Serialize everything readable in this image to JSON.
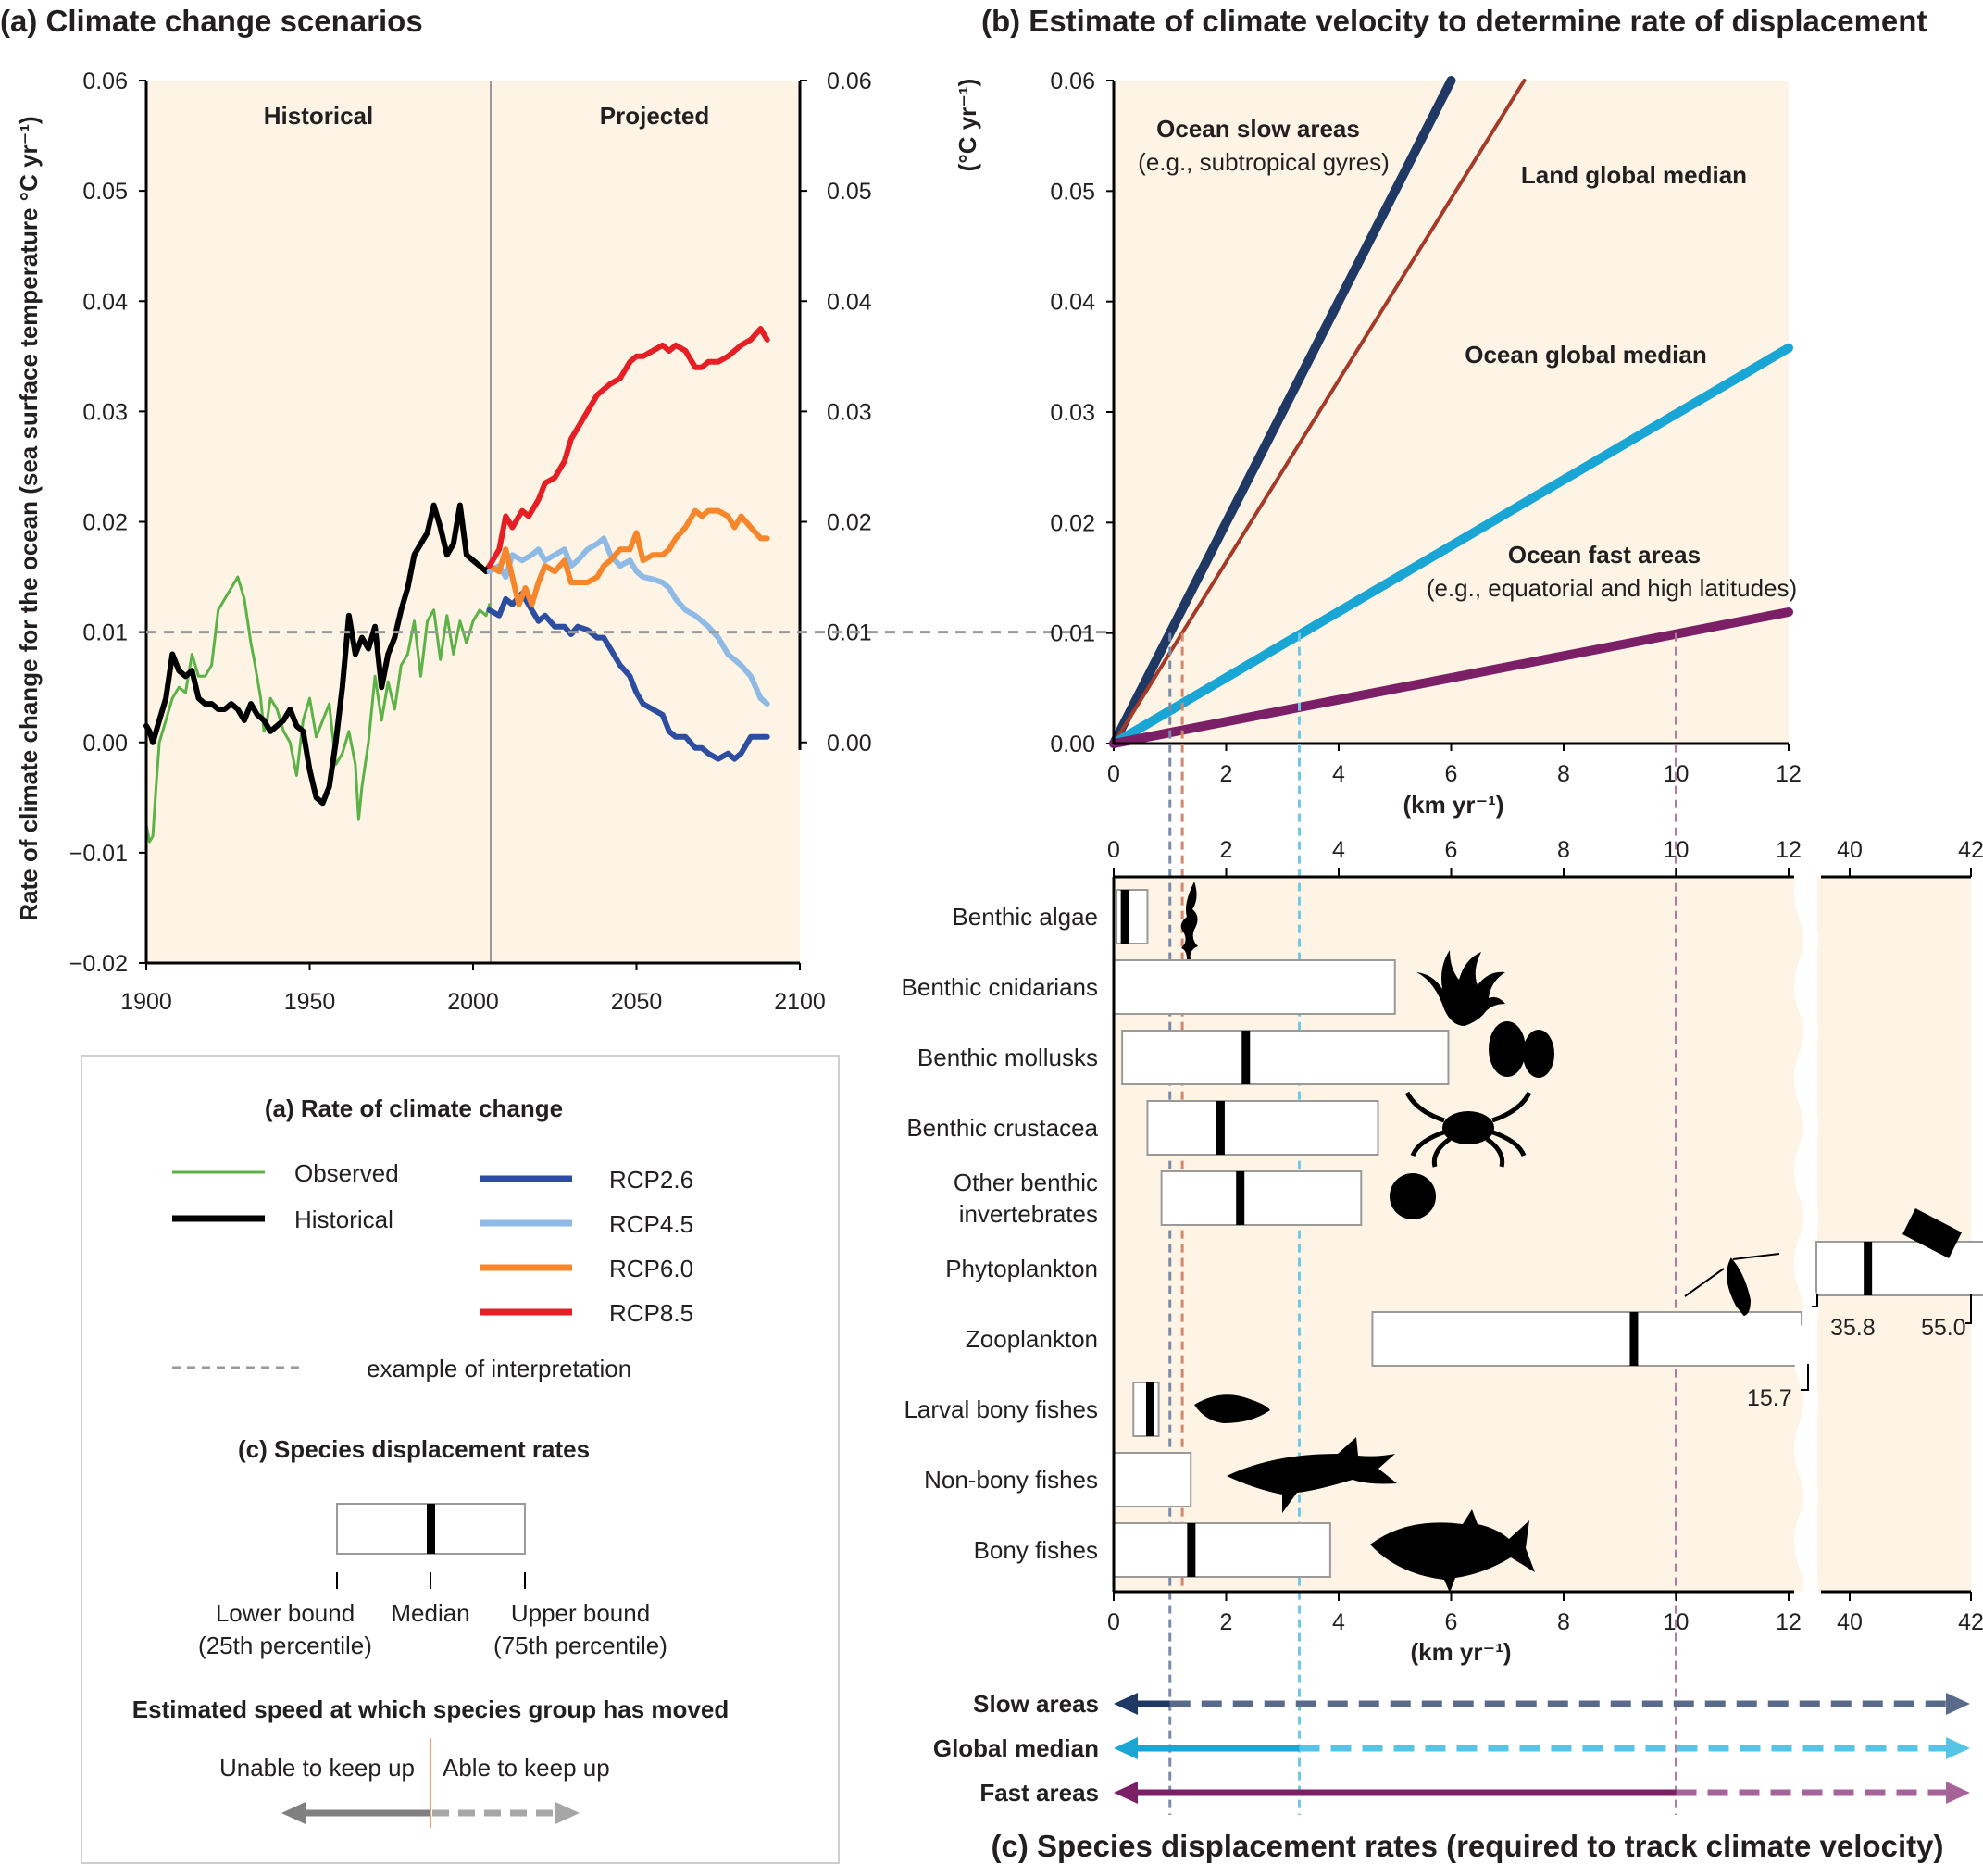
{
  "panel_a": {
    "title": "(a) Climate change scenarios",
    "ylabel": "Rate of climate change for the ocean (sea surface temperature °C yr⁻¹)",
    "region_historical": "Historical",
    "region_projected": "Projected"
  },
  "panel_b": {
    "title": "(b) Estimate of climate velocity to determine rate of displacement",
    "ylabel": "(°C yr⁻¹)",
    "xlabel": "(km yr⁻¹)",
    "ocean_slow_label": "Ocean slow areas",
    "ocean_slow_sub": "(e.g., subtropical gyres)",
    "land_label": "Land global median",
    "ocean_median_label": "Ocean global median",
    "ocean_fast_label": "Ocean fast areas",
    "ocean_fast_sub": "(e.g., equatorial and high latitudes)"
  },
  "panel_c": {
    "title": "(c) Species displacement rates (required to track climate velocity)",
    "xlabel": "(km yr⁻¹)",
    "phyto_lower": "35.8",
    "phyto_upper": "55.0",
    "zoo_upper": "15.7",
    "arrow_slow": "Slow areas",
    "arrow_median": "Global median",
    "arrow_fast": "Fast areas"
  },
  "legend": {
    "title_a": "(a) Rate of climate change",
    "observed": "Observed",
    "historical": "Historical",
    "rcp26": "RCP2.6",
    "rcp45": "RCP4.5",
    "rcp60": "RCP6.0",
    "rcp85": "RCP8.5",
    "interp": "example of interpretation",
    "title_c": "(c) Species displacement rates",
    "lower_bound": "Lower bound",
    "lower_pct": "(25th percentile)",
    "median": "Median",
    "upper_bound": "Upper bound",
    "upper_pct": "(75th percentile)",
    "speed_title": "Estimated speed at which species group has moved",
    "unable": "Unable to keep up",
    "able": "Able to keep up"
  },
  "colors": {
    "observed": "#5cb247",
    "historical": "#000000",
    "rcp26": "#2d4ea0",
    "rcp45": "#8ebae5",
    "rcp60": "#f5862b",
    "rcp85": "#e61f25",
    "slow": "#1f3864",
    "land": "#a63a28",
    "median": "#1aa6d5",
    "fast": "#7b1f66",
    "panel_bg": "#fdf4e6"
  },
  "chart_data": [
    {
      "type": "line",
      "panel": "a",
      "ylim": [
        -0.02,
        0.06
      ],
      "xlim": [
        1900,
        2100
      ],
      "xticks": [
        1900,
        1950,
        2000,
        2050,
        2100
      ],
      "yticks": [
        -0.02,
        -0.01,
        0.0,
        0.01,
        0.02,
        0.03,
        0.04,
        0.05,
        0.06
      ],
      "yticks_right": [
        0.0,
        0.01,
        0.02,
        0.03,
        0.04,
        0.05,
        0.06
      ],
      "interpretation_y": 0.01,
      "divider_x": 2005,
      "series": [
        {
          "name": "Observed",
          "color_key": "observed",
          "x": [
            1900,
            1901,
            1902,
            1903,
            1904,
            1906,
            1908,
            1910,
            1912,
            1914,
            1916,
            1918,
            1920,
            1922,
            1924,
            1926,
            1928,
            1930,
            1932,
            1933,
            1935,
            1936,
            1937,
            1938,
            1940,
            1942,
            1944,
            1946,
            1948,
            1950,
            1952,
            1954,
            1956,
            1958,
            1960,
            1962,
            1964,
            1965,
            1966,
            1968,
            1970,
            1972,
            1974,
            1976,
            1978,
            1980,
            1982,
            1984,
            1986,
            1988,
            1990,
            1992,
            1994,
            1996,
            1998,
            2000,
            2002,
            2004,
            2005
          ],
          "y": [
            -0.0075,
            -0.009,
            -0.0085,
            -0.004,
            0.0,
            0.002,
            0.004,
            0.005,
            0.0045,
            0.008,
            0.006,
            0.006,
            0.007,
            0.012,
            0.013,
            0.014,
            0.015,
            0.013,
            0.009,
            0.0075,
            0.004,
            0.001,
            0.002,
            0.004,
            0.003,
            0.001,
            0.0,
            -0.003,
            0.002,
            0.004,
            0.0005,
            0.002,
            0.0035,
            -0.002,
            -0.001,
            0.001,
            -0.002,
            -0.007,
            -0.004,
            0.0,
            0.006,
            0.002,
            0.0055,
            0.003,
            0.007,
            0.008,
            0.011,
            0.006,
            0.011,
            0.012,
            0.0075,
            0.0115,
            0.008,
            0.011,
            0.009,
            0.011,
            0.012,
            0.0115,
            0.0125
          ]
        },
        {
          "name": "Historical",
          "color_key": "historical",
          "x": [
            1900,
            1901,
            1902,
            1904,
            1906,
            1908,
            1910,
            1912,
            1914,
            1916,
            1918,
            1920,
            1922,
            1924,
            1926,
            1928,
            1930,
            1932,
            1934,
            1936,
            1938,
            1940,
            1942,
            1944,
            1946,
            1948,
            1950,
            1952,
            1954,
            1956,
            1958,
            1960,
            1962,
            1964,
            1966,
            1968,
            1970,
            1972,
            1974,
            1976,
            1978,
            1980,
            1982,
            1984,
            1986,
            1988,
            1990,
            1992,
            1994,
            1996,
            1998,
            2000,
            2002,
            2004,
            2005
          ],
          "y": [
            0.0015,
            0.001,
            0.0,
            0.002,
            0.004,
            0.008,
            0.0065,
            0.006,
            0.0065,
            0.004,
            0.0035,
            0.0035,
            0.003,
            0.003,
            0.0035,
            0.003,
            0.002,
            0.0035,
            0.0025,
            0.002,
            0.001,
            0.0015,
            0.002,
            0.003,
            0.0015,
            0.001,
            -0.0025,
            -0.005,
            -0.0055,
            -0.004,
            0.0,
            0.005,
            0.0115,
            0.008,
            0.0095,
            0.0085,
            0.0105,
            0.005,
            0.008,
            0.0095,
            0.012,
            0.014,
            0.017,
            0.018,
            0.019,
            0.0215,
            0.0195,
            0.017,
            0.018,
            0.0215,
            0.017,
            0.0165,
            0.016,
            0.0155,
            0.016
          ]
        },
        {
          "name": "RCP2.6",
          "color_key": "rcp26",
          "x": [
            2005,
            2008,
            2010,
            2012,
            2015,
            2018,
            2020,
            2022,
            2025,
            2028,
            2030,
            2032,
            2035,
            2038,
            2040,
            2042,
            2045,
            2048,
            2050,
            2052,
            2055,
            2058,
            2060,
            2062,
            2065,
            2068,
            2070,
            2072,
            2075,
            2078,
            2080,
            2082,
            2085,
            2088,
            2090
          ],
          "y": [
            0.012,
            0.0115,
            0.013,
            0.0125,
            0.0135,
            0.012,
            0.011,
            0.0115,
            0.0105,
            0.0105,
            0.0098,
            0.0105,
            0.0102,
            0.0095,
            0.0095,
            0.0085,
            0.007,
            0.006,
            0.0045,
            0.0035,
            0.003,
            0.0025,
            0.001,
            0.0005,
            0.0005,
            -0.0005,
            -0.0005,
            -0.001,
            -0.0015,
            -0.001,
            -0.0015,
            -0.001,
            0.0005,
            0.0005,
            0.0005
          ]
        },
        {
          "name": "RCP4.5",
          "color_key": "rcp45",
          "x": [
            2005,
            2008,
            2010,
            2012,
            2015,
            2018,
            2020,
            2022,
            2025,
            2028,
            2030,
            2032,
            2035,
            2038,
            2040,
            2042,
            2045,
            2048,
            2050,
            2052,
            2055,
            2058,
            2060,
            2062,
            2065,
            2068,
            2070,
            2072,
            2075,
            2078,
            2080,
            2082,
            2085,
            2088,
            2090
          ],
          "y": [
            0.0155,
            0.016,
            0.015,
            0.017,
            0.0165,
            0.017,
            0.0175,
            0.0165,
            0.017,
            0.0175,
            0.016,
            0.0165,
            0.0175,
            0.018,
            0.0185,
            0.017,
            0.016,
            0.0165,
            0.0155,
            0.015,
            0.0148,
            0.0145,
            0.014,
            0.013,
            0.012,
            0.0115,
            0.011,
            0.0105,
            0.0095,
            0.008,
            0.0075,
            0.007,
            0.006,
            0.004,
            0.0035
          ]
        },
        {
          "name": "RCP6.0",
          "color_key": "rcp60",
          "x": [
            2005,
            2008,
            2010,
            2012,
            2014,
            2016,
            2018,
            2020,
            2022,
            2025,
            2028,
            2030,
            2032,
            2035,
            2038,
            2040,
            2042,
            2045,
            2048,
            2050,
            2052,
            2055,
            2058,
            2060,
            2062,
            2065,
            2068,
            2070,
            2072,
            2075,
            2078,
            2080,
            2082,
            2085,
            2088,
            2090
          ],
          "y": [
            0.016,
            0.0155,
            0.0175,
            0.015,
            0.0125,
            0.014,
            0.0125,
            0.0145,
            0.016,
            0.0155,
            0.0165,
            0.0145,
            0.0145,
            0.0145,
            0.015,
            0.016,
            0.0165,
            0.0175,
            0.0175,
            0.019,
            0.0165,
            0.017,
            0.017,
            0.0175,
            0.0185,
            0.0195,
            0.021,
            0.0205,
            0.021,
            0.021,
            0.0205,
            0.0195,
            0.0205,
            0.0195,
            0.0185,
            0.0185
          ]
        },
        {
          "name": "RCP8.5",
          "color_key": "rcp85",
          "x": [
            2005,
            2008,
            2010,
            2012,
            2015,
            2017,
            2020,
            2022,
            2025,
            2028,
            2030,
            2032,
            2035,
            2038,
            2040,
            2042,
            2045,
            2048,
            2050,
            2052,
            2055,
            2058,
            2060,
            2062,
            2065,
            2068,
            2070,
            2072,
            2075,
            2078,
            2080,
            2082,
            2085,
            2088,
            2090
          ],
          "y": [
            0.016,
            0.0175,
            0.0205,
            0.0195,
            0.021,
            0.0205,
            0.022,
            0.0235,
            0.024,
            0.0255,
            0.0275,
            0.0285,
            0.03,
            0.0315,
            0.032,
            0.0325,
            0.033,
            0.0345,
            0.035,
            0.035,
            0.0355,
            0.036,
            0.0355,
            0.036,
            0.0355,
            0.034,
            0.034,
            0.0345,
            0.0345,
            0.035,
            0.0355,
            0.036,
            0.0365,
            0.0375,
            0.0365
          ]
        }
      ]
    },
    {
      "type": "line",
      "panel": "b",
      "xlim": [
        0,
        12
      ],
      "ylim": [
        0,
        0.06
      ],
      "xticks": [
        0,
        2,
        4,
        6,
        8,
        10,
        12
      ],
      "yticks": [
        0.0,
        0.01,
        0.02,
        0.03,
        0.04,
        0.05,
        0.06
      ],
      "series": [
        {
          "name": "Ocean slow areas",
          "color_key": "slow",
          "x": [
            0,
            6.0
          ],
          "y": [
            0,
            0.06
          ],
          "crossing_km": 1.0
        },
        {
          "name": "Land global median",
          "color_key": "land",
          "x": [
            0,
            7.3
          ],
          "y": [
            0,
            0.06
          ],
          "crossing_km": 1.22
        },
        {
          "name": "Ocean global median",
          "color_key": "median",
          "x": [
            0,
            12
          ],
          "y": [
            0,
            0.0358
          ],
          "crossing_km": 3.3
        },
        {
          "name": "Ocean fast areas",
          "color_key": "fast",
          "x": [
            0,
            12
          ],
          "y": [
            0,
            0.0119
          ],
          "crossing_km": 10.0
        }
      ]
    },
    {
      "type": "bar",
      "panel": "c",
      "xlim": [
        0,
        12
      ],
      "xlim_broken": [
        40,
        42
      ],
      "xticks": [
        0,
        2,
        4,
        6,
        8,
        10,
        12
      ],
      "xticks_broken": [
        40,
        42
      ],
      "categories": [
        "Benthic algae",
        "Benthic cnidarians",
        "Benthic mollusks",
        "Benthic crustacea",
        "Other benthic invertebrates",
        "Phytoplankton",
        "Zooplankton",
        "Larval bony fishes",
        "Non-bony fishes",
        "Bony fishes"
      ],
      "lower": [
        0.05,
        0.0,
        0.15,
        0.6,
        0.85,
        35.8,
        4.6,
        0.35,
        0.0,
        0.0
      ],
      "median": [
        0.2,
        null,
        2.35,
        1.9,
        2.25,
        40.3,
        9.25,
        0.65,
        0.0,
        1.38
      ],
      "upper": [
        0.6,
        5.0,
        5.95,
        4.7,
        4.4,
        55.0,
        15.7,
        0.8,
        1.37,
        3.85
      ],
      "arrows": [
        {
          "name": "Slow areas",
          "split_km": 1.0
        },
        {
          "name": "Global median",
          "split_km": 3.3
        },
        {
          "name": "Fast areas",
          "split_km": 10.0
        }
      ]
    }
  ]
}
